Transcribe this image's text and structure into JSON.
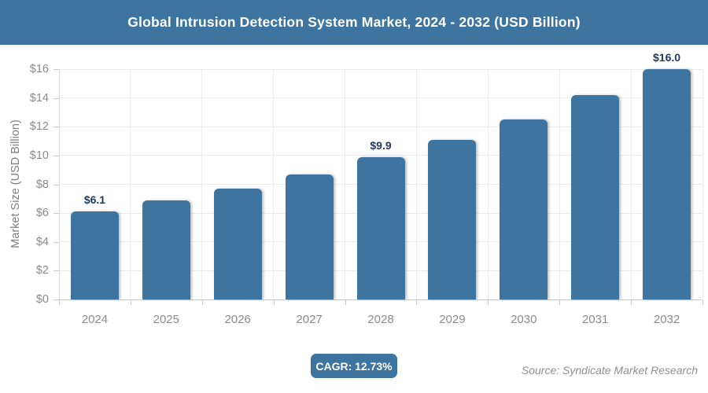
{
  "title": "Global Intrusion Detection System Market, 2024 - 2032 (USD Billion)",
  "chart_data": {
    "type": "bar",
    "categories": [
      "2024",
      "2025",
      "2026",
      "2027",
      "2028",
      "2029",
      "2030",
      "2031",
      "2032"
    ],
    "values": [
      6.1,
      6.9,
      7.7,
      8.7,
      9.9,
      11.1,
      12.5,
      14.2,
      16.0
    ],
    "data_labels": [
      {
        "category": "2024",
        "text": "$6.1"
      },
      {
        "category": "2028",
        "text": "$9.9"
      },
      {
        "category": "2032",
        "text": "$16.0"
      }
    ],
    "title": "Global Intrusion Detection System Market, 2024 - 2032 (USD Billion)",
    "xlabel": "",
    "ylabel": "Market Size (USD Billion)",
    "ylim": [
      0,
      16
    ],
    "ytick_step": 2,
    "ytick_labels": [
      "$0",
      "$2",
      "$4",
      "$6",
      "$8",
      "$10",
      "$12",
      "$14",
      "$16"
    ],
    "grid": true,
    "legend": false
  },
  "footer": {
    "cagr_label": "CAGR: 12.73%",
    "source": "Source: Syndicate Market Research"
  },
  "colors": {
    "accent": "#3E75A0",
    "bar": "#3E75A0",
    "title_text": "#FFFFFF",
    "data_label": "#1F3A60",
    "axis_text": "#8A8A8A",
    "gridline": "#E9E9E9"
  }
}
